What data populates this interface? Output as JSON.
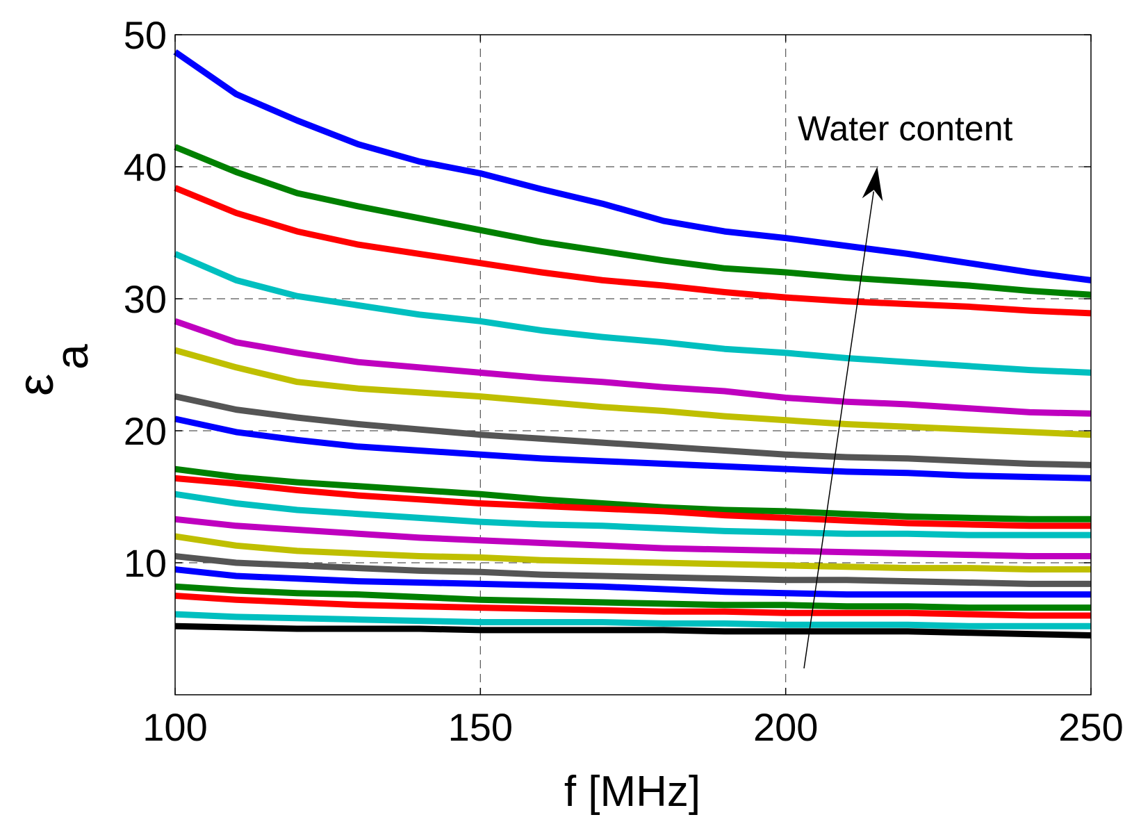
{
  "chart_data": {
    "type": "line",
    "title": "",
    "xlabel": "f [MHz]",
    "ylabel_main": "ε",
    "ylabel_sub": "a",
    "xlim": [
      100,
      250
    ],
    "ylim": [
      0,
      50
    ],
    "xticks": [
      100,
      150,
      200,
      250
    ],
    "yticks": [
      10,
      20,
      30,
      40,
      50
    ],
    "grid": true,
    "annotation": {
      "text": "Water content",
      "arrow_from": [
        203,
        2
      ],
      "arrow_to": [
        215,
        40
      ]
    },
    "x": [
      100,
      110,
      120,
      130,
      140,
      150,
      160,
      170,
      180,
      190,
      200,
      210,
      220,
      230,
      240,
      250
    ],
    "series": [
      {
        "name": "s1",
        "color": "#0000ff",
        "values": [
          48.7,
          45.5,
          43.5,
          41.7,
          40.4,
          39.5,
          38.3,
          37.2,
          35.9,
          35.1,
          34.6,
          34.0,
          33.4,
          32.7,
          32.0,
          31.4
        ]
      },
      {
        "name": "s2",
        "color": "#008000",
        "values": [
          41.5,
          39.6,
          38.0,
          37.0,
          36.1,
          35.2,
          34.3,
          33.6,
          32.9,
          32.3,
          32.0,
          31.6,
          31.3,
          31.0,
          30.6,
          30.3
        ]
      },
      {
        "name": "s3",
        "color": "#ff0000",
        "values": [
          38.4,
          36.5,
          35.1,
          34.1,
          33.4,
          32.7,
          32.0,
          31.4,
          31.0,
          30.5,
          30.1,
          29.8,
          29.6,
          29.4,
          29.1,
          28.9
        ]
      },
      {
        "name": "s4",
        "color": "#00bfbf",
        "values": [
          33.4,
          31.4,
          30.2,
          29.5,
          28.8,
          28.3,
          27.6,
          27.1,
          26.7,
          26.2,
          25.9,
          25.5,
          25.2,
          24.9,
          24.6,
          24.4
        ]
      },
      {
        "name": "s5",
        "color": "#bf00bf",
        "values": [
          28.3,
          26.7,
          25.9,
          25.2,
          24.8,
          24.4,
          24.0,
          23.7,
          23.3,
          23.0,
          22.5,
          22.2,
          22.0,
          21.7,
          21.4,
          21.3
        ]
      },
      {
        "name": "s6",
        "color": "#bfbf00",
        "values": [
          26.1,
          24.8,
          23.7,
          23.2,
          22.9,
          22.6,
          22.2,
          21.8,
          21.5,
          21.1,
          20.8,
          20.5,
          20.3,
          20.1,
          19.9,
          19.7
        ]
      },
      {
        "name": "s7",
        "color": "#555555",
        "values": [
          22.6,
          21.6,
          21.0,
          20.5,
          20.1,
          19.7,
          19.4,
          19.1,
          18.8,
          18.5,
          18.2,
          18.0,
          17.9,
          17.7,
          17.5,
          17.4
        ]
      },
      {
        "name": "s8",
        "color": "#0000ff",
        "values": [
          20.9,
          19.9,
          19.3,
          18.8,
          18.5,
          18.2,
          17.9,
          17.7,
          17.5,
          17.3,
          17.1,
          16.9,
          16.8,
          16.6,
          16.5,
          16.4
        ]
      },
      {
        "name": "s9",
        "color": "#008000",
        "values": [
          17.1,
          16.5,
          16.1,
          15.8,
          15.5,
          15.2,
          14.8,
          14.5,
          14.2,
          14.0,
          13.9,
          13.7,
          13.5,
          13.4,
          13.3,
          13.3
        ]
      },
      {
        "name": "s10",
        "color": "#ff0000",
        "values": [
          16.4,
          16.0,
          15.5,
          15.1,
          14.8,
          14.5,
          14.3,
          14.1,
          13.9,
          13.6,
          13.4,
          13.2,
          13.0,
          12.9,
          12.8,
          12.8
        ]
      },
      {
        "name": "s11",
        "color": "#00bfbf",
        "values": [
          15.2,
          14.5,
          14.0,
          13.7,
          13.4,
          13.1,
          12.9,
          12.8,
          12.6,
          12.4,
          12.3,
          12.2,
          12.2,
          12.1,
          12.1,
          12.1
        ]
      },
      {
        "name": "s12",
        "color": "#bf00bf",
        "values": [
          13.3,
          12.8,
          12.5,
          12.2,
          11.9,
          11.7,
          11.5,
          11.3,
          11.1,
          11.0,
          10.9,
          10.8,
          10.7,
          10.6,
          10.5,
          10.5
        ]
      },
      {
        "name": "s13",
        "color": "#bfbf00",
        "values": [
          12.0,
          11.3,
          10.9,
          10.7,
          10.5,
          10.4,
          10.2,
          10.1,
          10.0,
          9.9,
          9.8,
          9.7,
          9.6,
          9.6,
          9.5,
          9.5
        ]
      },
      {
        "name": "s14",
        "color": "#555555",
        "values": [
          10.5,
          10.0,
          9.8,
          9.6,
          9.4,
          9.3,
          9.1,
          9.0,
          8.9,
          8.8,
          8.7,
          8.7,
          8.6,
          8.5,
          8.4,
          8.4
        ]
      },
      {
        "name": "s15",
        "color": "#0000ff",
        "values": [
          9.5,
          9.0,
          8.8,
          8.6,
          8.5,
          8.4,
          8.3,
          8.2,
          8.0,
          7.8,
          7.7,
          7.6,
          7.6,
          7.6,
          7.6,
          7.6
        ]
      },
      {
        "name": "s16",
        "color": "#008000",
        "values": [
          8.2,
          7.9,
          7.7,
          7.6,
          7.4,
          7.2,
          7.1,
          7.0,
          6.9,
          6.8,
          6.8,
          6.7,
          6.7,
          6.6,
          6.6,
          6.6
        ]
      },
      {
        "name": "s17",
        "color": "#ff0000",
        "values": [
          7.5,
          7.2,
          7.0,
          6.8,
          6.7,
          6.6,
          6.5,
          6.4,
          6.3,
          6.3,
          6.2,
          6.2,
          6.2,
          6.1,
          6.0,
          6.0
        ]
      },
      {
        "name": "s18",
        "color": "#00bfbf",
        "values": [
          6.1,
          5.9,
          5.8,
          5.7,
          5.6,
          5.5,
          5.5,
          5.5,
          5.4,
          5.4,
          5.3,
          5.3,
          5.3,
          5.2,
          5.2,
          5.2
        ]
      },
      {
        "name": "s19",
        "color": "#000000",
        "values": [
          5.2,
          5.1,
          5.0,
          5.0,
          5.0,
          4.9,
          4.9,
          4.9,
          4.9,
          4.8,
          4.8,
          4.8,
          4.8,
          4.7,
          4.6,
          4.5
        ]
      }
    ]
  }
}
